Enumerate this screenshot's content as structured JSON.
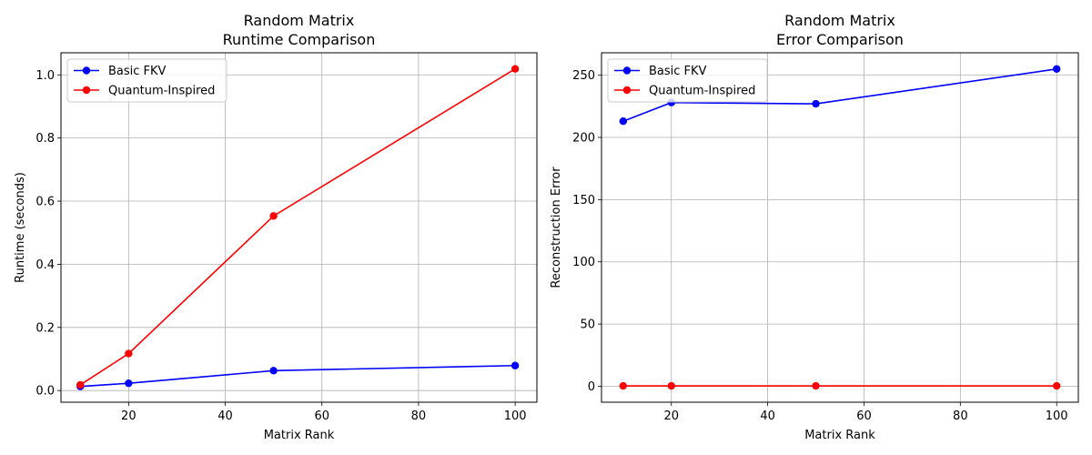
{
  "chart_data": [
    {
      "type": "line",
      "title_lines": [
        "Random Matrix",
        "Runtime Comparison"
      ],
      "xlabel": "Matrix Rank",
      "ylabel": "Runtime (seconds)",
      "xlim": [
        6,
        104.5
      ],
      "ylim": [
        -0.037,
        1.07
      ],
      "xticks": [
        20,
        40,
        60,
        80,
        100
      ],
      "yticks": [
        0.0,
        0.2,
        0.4,
        0.6,
        0.8,
        1.0
      ],
      "ytick_decimals": 1,
      "grid": true,
      "legend_position": "upper-left",
      "x": [
        10,
        20,
        50,
        100
      ],
      "series": [
        {
          "name": "Basic FKV",
          "color": "#0000ff",
          "values": [
            0.013,
            0.023,
            0.063,
            0.079
          ]
        },
        {
          "name": "Quantum-Inspired",
          "color": "#ff0000",
          "values": [
            0.018,
            0.117,
            0.553,
            1.019
          ]
        }
      ]
    },
    {
      "type": "line",
      "title_lines": [
        "Random Matrix",
        "Error Comparison"
      ],
      "xlabel": "Matrix Rank",
      "ylabel": "Reconstruction Error",
      "xlim": [
        5.5,
        104.5
      ],
      "ylim": [
        -12.8,
        268
      ],
      "xticks": [
        20,
        40,
        60,
        80,
        100
      ],
      "yticks": [
        0,
        50,
        100,
        150,
        200,
        250
      ],
      "ytick_decimals": 0,
      "grid": true,
      "legend_position": "upper-left",
      "x": [
        10,
        20,
        50,
        100
      ],
      "series": [
        {
          "name": "Basic FKV",
          "color": "#0000ff",
          "values": [
            213,
            228,
            227,
            255
          ]
        },
        {
          "name": "Quantum-Inspired",
          "color": "#ff0000",
          "values": [
            0.3,
            0.3,
            0.3,
            0.3
          ]
        }
      ]
    }
  ]
}
